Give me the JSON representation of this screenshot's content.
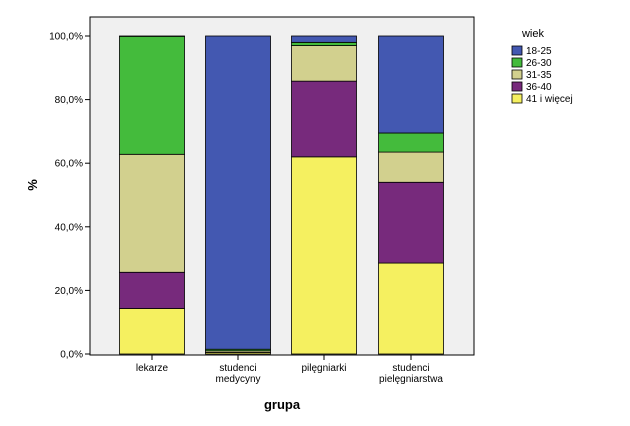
{
  "chart_data": {
    "type": "bar",
    "stacked": true,
    "xlabel": "grupa",
    "ylabel": "%",
    "ylim": [
      0,
      100
    ],
    "yticks": [
      "0,0%",
      "20,0%",
      "40,0%",
      "60,0%",
      "80,0%",
      "100,0%"
    ],
    "categories": [
      [
        "lekarze"
      ],
      [
        "studenci",
        "medycyny"
      ],
      [
        "pilęgniarki"
      ],
      [
        "studenci",
        "pielęgniarstwa"
      ]
    ],
    "legend_title": "wiek",
    "legend_position": "right",
    "series": [
      {
        "name": "41 i więcej",
        "color": "#f5f060",
        "values": [
          14.3,
          0.5,
          62.0,
          28.6
        ]
      },
      {
        "name": "36-40",
        "color": "#772a7c",
        "values": [
          11.4,
          0.0,
          23.8,
          25.4
        ]
      },
      {
        "name": "31-35",
        "color": "#d2d08e",
        "values": [
          37.1,
          0.5,
          11.2,
          9.5
        ]
      },
      {
        "name": "26-30",
        "color": "#44bb3c",
        "values": [
          37.1,
          0.5,
          1.0,
          6.0
        ]
      },
      {
        "name": "18-25",
        "color": "#4358b1",
        "values": [
          0.1,
          98.5,
          2.0,
          30.5
        ]
      }
    ],
    "legend_order": [
      "18-25",
      "26-30",
      "31-35",
      "36-40",
      "41 i więcej"
    ]
  }
}
